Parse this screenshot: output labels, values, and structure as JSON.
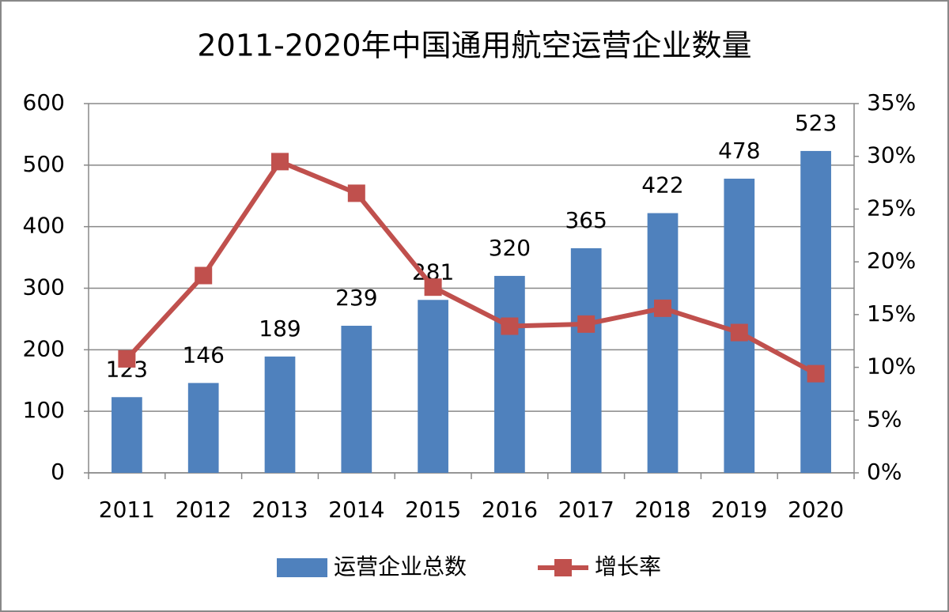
{
  "chart_data": {
    "type": "bar-line",
    "title": "2011-2020年中国通用航空运营企业数量",
    "categories": [
      "2011",
      "2012",
      "2013",
      "2014",
      "2015",
      "2016",
      "2017",
      "2018",
      "2019",
      "2020"
    ],
    "series": [
      {
        "name": "运营企业总数",
        "type": "bar",
        "color": "#4f81bd",
        "values": [
          123,
          146,
          189,
          239,
          281,
          320,
          365,
          422,
          478,
          523
        ]
      },
      {
        "name": "增长率",
        "type": "line",
        "axis": "y2",
        "color": "#c0504d",
        "values": [
          10.8,
          18.7,
          29.5,
          26.5,
          17.6,
          13.9,
          14.1,
          15.6,
          13.3,
          9.4
        ]
      }
    ],
    "ylim": [
      0,
      600
    ],
    "yticks": [
      0,
      100,
      200,
      300,
      400,
      500,
      600
    ],
    "y2lim": [
      0,
      35
    ],
    "y2ticks": [
      {
        "value": 0,
        "label": "0%"
      },
      {
        "value": 5,
        "label": "5%"
      },
      {
        "value": 10,
        "label": "10%"
      },
      {
        "value": 15,
        "label": "15%"
      },
      {
        "value": 20,
        "label": "20%"
      },
      {
        "value": 25,
        "label": "25%"
      },
      {
        "value": 30,
        "label": "30%"
      },
      {
        "value": 35,
        "label": "35%"
      }
    ],
    "grid": true,
    "legend": "bottom"
  }
}
